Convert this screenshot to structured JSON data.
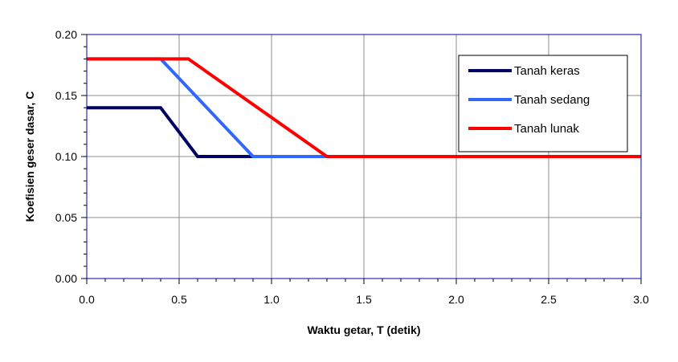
{
  "chart_data": {
    "type": "line",
    "title": "",
    "xlabel": "Waktu getar, T (detik)",
    "ylabel": "Koefisien geser dasar, C",
    "xlim": [
      0,
      3.0
    ],
    "ylim": [
      0,
      0.2
    ],
    "xticks": [
      0,
      0.5,
      1.0,
      1.5,
      2.0,
      2.5,
      3.0
    ],
    "xtick_labels": [
      "0.0",
      "0.5",
      "1.0",
      "1.5",
      "2.0",
      "2.5",
      "3.0"
    ],
    "yticks": [
      0,
      0.05,
      0.1,
      0.15,
      0.2
    ],
    "ytick_labels": [
      "0.00",
      "0.05",
      "0.10",
      "0.15",
      "0.20"
    ],
    "grid": true,
    "legend_position": "top-right",
    "series": [
      {
        "name": "Tanah keras",
        "color": "#000066",
        "x": [
          0,
          0.4,
          0.6,
          3.0
        ],
        "y": [
          0.14,
          0.14,
          0.1,
          0.1
        ]
      },
      {
        "name": "Tanah sedang",
        "color": "#3366ff",
        "x": [
          0,
          0.4,
          0.9,
          3.0
        ],
        "y": [
          0.18,
          0.18,
          0.1,
          0.1
        ]
      },
      {
        "name": "Tanah lunak",
        "color": "#ff0000",
        "x": [
          0,
          0.55,
          1.3,
          3.0
        ],
        "y": [
          0.18,
          0.18,
          0.1,
          0.1
        ]
      }
    ]
  }
}
